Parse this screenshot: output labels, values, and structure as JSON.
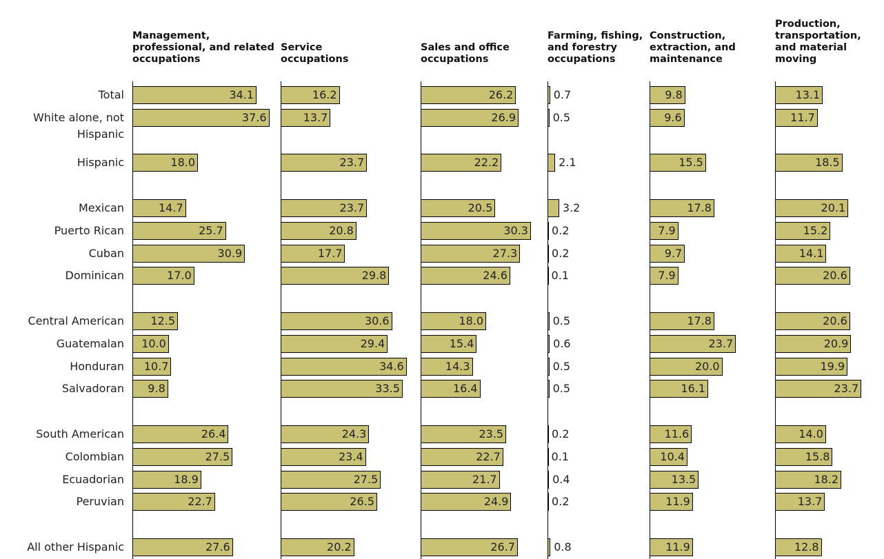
{
  "chart_data": {
    "type": "bar",
    "categories": [
      "Total",
      "White alone, not Hispanic",
      null,
      "Hispanic",
      null,
      "Mexican",
      "Puerto Rican",
      "Cuban",
      "Dominican",
      null,
      "Central American",
      "Guatemalan",
      "Honduran",
      "Salvadoran",
      null,
      "South American",
      "Colombian",
      "Ecuadorian",
      "Peruvian",
      null,
      "All other Hispanic"
    ],
    "series": [
      {
        "name": "Management, professional, and related occupations",
        "color": "#c9c274",
        "values": [
          34.1,
          37.6,
          null,
          18.0,
          null,
          14.7,
          25.7,
          30.9,
          17.0,
          null,
          12.5,
          10.0,
          10.7,
          9.8,
          null,
          26.4,
          27.5,
          18.9,
          22.7,
          null,
          27.6
        ],
        "value_labels": [
          "34.1",
          "37.6",
          null,
          "18.0",
          null,
          "14.7",
          "25.7",
          "30.9",
          "17.0",
          null,
          "12.5",
          "10.0",
          "10.7",
          "9.8",
          null,
          "26.4",
          "27.5",
          "18.9",
          "22.7",
          null,
          "27.6"
        ]
      },
      {
        "name": "Service occupations",
        "color": "#c9c274",
        "values": [
          16.2,
          13.7,
          null,
          23.7,
          null,
          23.7,
          20.8,
          17.7,
          29.8,
          null,
          30.6,
          29.4,
          34.6,
          33.5,
          null,
          24.3,
          23.4,
          27.5,
          26.5,
          null,
          20.2
        ],
        "value_labels": [
          "16.2",
          "13.7",
          null,
          "23.7",
          null,
          "23.7",
          "20.8",
          "17.7",
          "29.8",
          null,
          "30.6",
          "29.4",
          "34.6",
          "33.5",
          null,
          "24.3",
          "23.4",
          "27.5",
          "26.5",
          null,
          "20.2"
        ]
      },
      {
        "name": "Sales and office occupations",
        "color": "#c9c274",
        "values": [
          26.2,
          26.9,
          null,
          22.2,
          null,
          20.5,
          30.3,
          27.3,
          24.6,
          null,
          18.0,
          15.4,
          14.3,
          16.4,
          null,
          23.5,
          22.7,
          21.7,
          24.9,
          null,
          26.7
        ],
        "value_labels": [
          "26.2",
          "26.9",
          null,
          "22.2",
          null,
          "20.5",
          "30.3",
          "27.3",
          "24.6",
          null,
          "18.0",
          "15.4",
          "14.3",
          "16.4",
          null,
          "23.5",
          "22.7",
          "21.7",
          "24.9",
          null,
          "26.7"
        ]
      },
      {
        "name": "Farming, fishing, and forestry occupations",
        "color": "#c9c274",
        "values": [
          0.7,
          0.5,
          null,
          2.1,
          null,
          3.2,
          0.2,
          0.2,
          0.1,
          null,
          0.5,
          0.6,
          0.5,
          0.5,
          null,
          0.2,
          0.1,
          0.4,
          0.2,
          null,
          0.8
        ],
        "value_labels": [
          "0.7",
          "0.5",
          null,
          "2.1",
          null,
          "3.2",
          "0.2",
          "0.2",
          "0.1",
          null,
          "0.5",
          "0.6",
          "0.5",
          "0.5",
          null,
          "0.2",
          "0.1",
          "0.4",
          "0.2",
          null,
          "0.8"
        ]
      },
      {
        "name": "Construction, extraction, and maintenance",
        "color": "#c9c274",
        "values": [
          9.8,
          9.6,
          null,
          15.5,
          null,
          17.8,
          7.9,
          9.7,
          7.9,
          null,
          17.8,
          23.7,
          20.0,
          16.1,
          null,
          11.6,
          10.4,
          13.5,
          11.9,
          null,
          11.9
        ],
        "value_labels": [
          "9.8",
          "9.6",
          null,
          "15.5",
          null,
          "17.8",
          "7.9",
          "9.7",
          "7.9",
          null,
          "17.8",
          "23.7",
          "20.0",
          "16.1",
          null,
          "11.6",
          "10.4",
          "13.5",
          "11.9",
          null,
          "11.9"
        ]
      },
      {
        "name": "Production, transportation, and material moving",
        "color": "#c9c274",
        "values": [
          13.1,
          11.7,
          null,
          18.5,
          null,
          20.1,
          15.2,
          14.1,
          20.6,
          null,
          20.6,
          20.9,
          19.9,
          23.7,
          null,
          14.0,
          15.8,
          18.2,
          13.7,
          null,
          12.8
        ],
        "value_labels": [
          "13.1",
          "11.7",
          null,
          "18.5",
          null,
          "20.1",
          "15.2",
          "14.1",
          "20.6",
          null,
          "20.6",
          "20.9",
          "19.9",
          "23.7",
          null,
          "14.0",
          "15.8",
          "18.2",
          "13.7",
          null,
          "12.8"
        ]
      }
    ]
  }
}
